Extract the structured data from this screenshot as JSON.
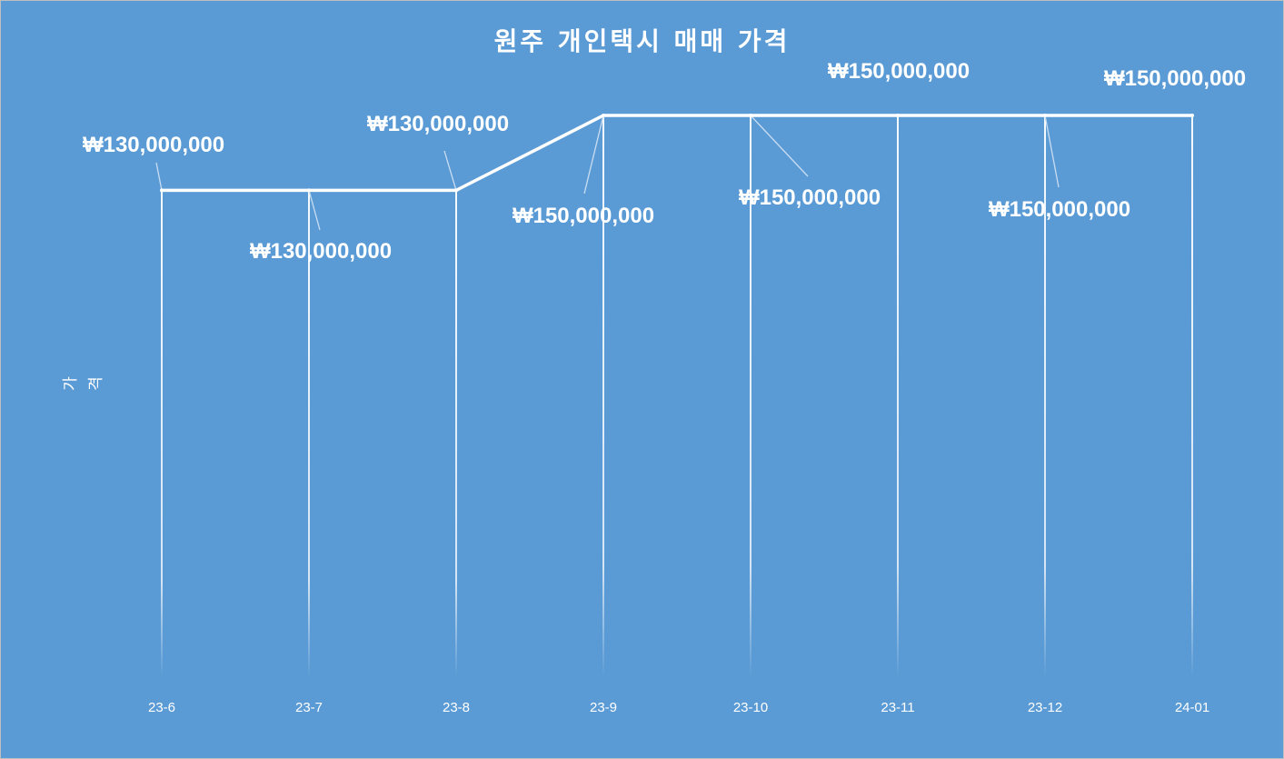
{
  "chart_data": {
    "type": "line",
    "title": "원주 개인택시 매매 가격",
    "xlabel": "",
    "ylabel": "가격",
    "categories": [
      "23-6",
      "23-7",
      "23-8",
      "23-9",
      "23-10",
      "23-11",
      "23-12",
      "24-01"
    ],
    "series": [
      {
        "values": [
          130000000,
          130000000,
          130000000,
          150000000,
          150000000,
          150000000,
          150000000,
          150000000
        ]
      }
    ],
    "data_labels": [
      "₩130,000,000",
      "₩130,000,000",
      "₩130,000,000",
      "₩150,000,000",
      "₩150,000,000",
      "₩150,000,000",
      "₩150,000,000",
      "₩150,000,000"
    ],
    "ylim": [
      0,
      170000000
    ],
    "drop_lines": true,
    "grid": false,
    "legend": "none",
    "colors": {
      "background": "#5b9bd5",
      "line": "#ffffff",
      "text": "#ffffff"
    }
  }
}
